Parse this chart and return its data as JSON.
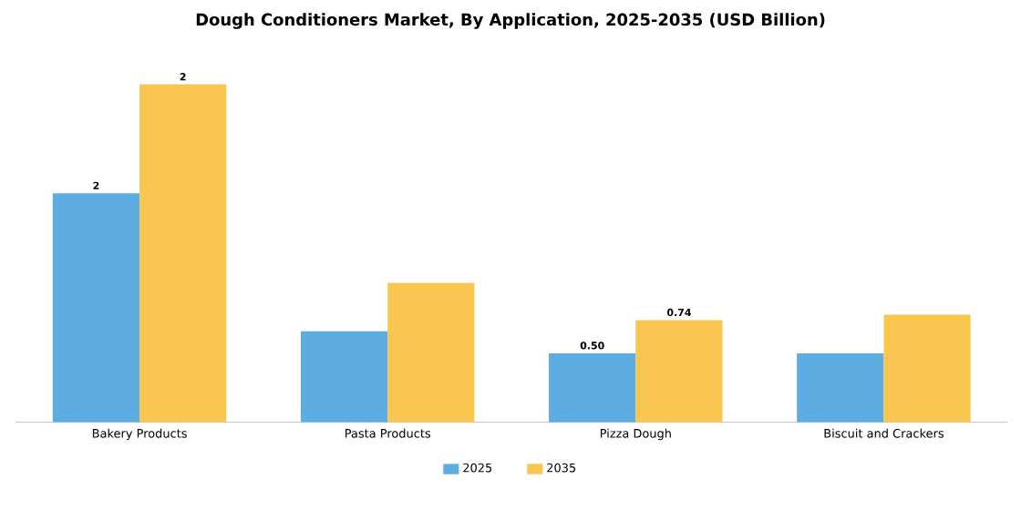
{
  "chart_data": {
    "type": "bar",
    "title": "Dough Conditioners Market, By Application, 2025-2035 (USD Billion)",
    "categories": [
      "Bakery Products",
      "Pasta Products",
      "Pizza Dough",
      "Biscuit and Crackers"
    ],
    "series": [
      {
        "name": "2025",
        "color": "#5dade2",
        "values": [
          1.66,
          0.66,
          0.5,
          0.5
        ],
        "value_labels": [
          "2",
          null,
          "0.50",
          null
        ]
      },
      {
        "name": "2035",
        "color": "#f9c74f",
        "values": [
          2.45,
          1.01,
          0.74,
          0.78
        ],
        "value_labels": [
          "2",
          null,
          "0.74",
          null
        ]
      }
    ],
    "legend": "bottom"
  }
}
